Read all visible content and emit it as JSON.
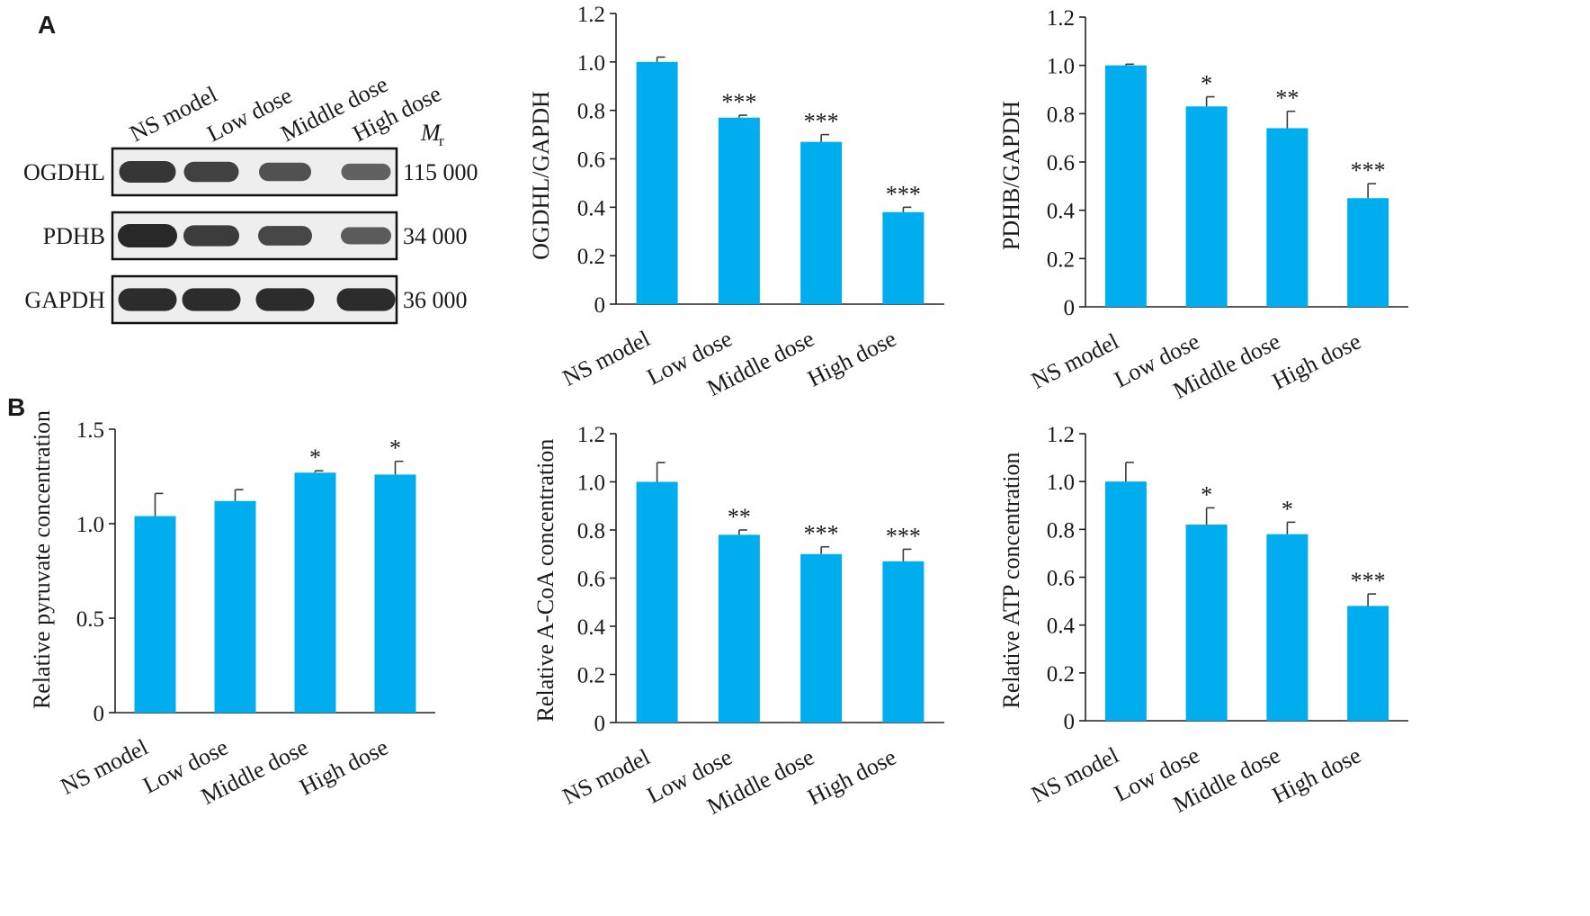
{
  "panels": {
    "a_label": "A",
    "b_label": "B"
  },
  "blot": {
    "lanes": [
      "NS model",
      "Low dose",
      "Middle dose",
      "High dose"
    ],
    "mr_label": "M",
    "mr_subscript": "r",
    "rows": [
      {
        "name": "OGDHL",
        "mw": "115 000",
        "intensity": [
          0.85,
          0.75,
          0.6,
          0.45
        ]
      },
      {
        "name": "PDHB",
        "mw": "34 000",
        "intensity": [
          1.0,
          0.8,
          0.7,
          0.5
        ]
      },
      {
        "name": "GAPDH",
        "mw": "36 000",
        "intensity": [
          0.95,
          0.95,
          0.95,
          0.95
        ]
      }
    ]
  },
  "style": {
    "bar_color": "#00aeef",
    "band_color": "#1c1c1c"
  },
  "chart_data": [
    {
      "id": "ogdhl",
      "type": "bar",
      "categories": [
        "NS model",
        "Low dose",
        "Middle dose",
        "High dose"
      ],
      "values": [
        1.0,
        0.77,
        0.67,
        0.38
      ],
      "errors": [
        0.02,
        0.01,
        0.03,
        0.02
      ],
      "significance": [
        "",
        "***",
        "***",
        "***"
      ],
      "ylabel": "OGDHL/GAPDH",
      "ylim": [
        0,
        1.2
      ],
      "yticks": [
        "0",
        "0.2",
        "0.4",
        "0.6",
        "0.8",
        "1.0",
        "1.2"
      ]
    },
    {
      "id": "pdhb",
      "type": "bar",
      "categories": [
        "NS model",
        "Low dose",
        "Middle dose",
        "High dose"
      ],
      "values": [
        1.0,
        0.83,
        0.74,
        0.45
      ],
      "errors": [
        0.005,
        0.04,
        0.07,
        0.06
      ],
      "significance": [
        "",
        "*",
        "**",
        "***"
      ],
      "ylabel": "PDHB/GAPDH",
      "ylim": [
        0,
        1.2
      ],
      "yticks": [
        "0",
        "0.2",
        "0.4",
        "0.6",
        "0.8",
        "1.0",
        "1.2"
      ]
    },
    {
      "id": "pyruvate",
      "type": "bar",
      "categories": [
        "NS model",
        "Low dose",
        "Middle dose",
        "High dose"
      ],
      "values": [
        1.04,
        1.12,
        1.27,
        1.26
      ],
      "errors": [
        0.12,
        0.06,
        0.01,
        0.07
      ],
      "significance": [
        "",
        "",
        "*",
        "*"
      ],
      "ylabel": "Relative pyruvate concentration",
      "ylim": [
        0,
        1.5
      ],
      "yticks": [
        "0",
        "0.5",
        "1.0",
        "1.5"
      ]
    },
    {
      "id": "acoa",
      "type": "bar",
      "categories": [
        "NS model",
        "Low dose",
        "Middle dose",
        "High dose"
      ],
      "values": [
        1.0,
        0.78,
        0.7,
        0.67
      ],
      "errors": [
        0.08,
        0.02,
        0.03,
        0.05
      ],
      "significance": [
        "",
        "**",
        "***",
        "***"
      ],
      "ylabel": "Relative A-CoA concentration",
      "ylim": [
        0,
        1.2
      ],
      "yticks": [
        "0",
        "0.2",
        "0.4",
        "0.6",
        "0.8",
        "1.0",
        "1.2"
      ]
    },
    {
      "id": "atp",
      "type": "bar",
      "categories": [
        "NS model",
        "Low dose",
        "Middle dose",
        "High dose"
      ],
      "values": [
        1.0,
        0.82,
        0.78,
        0.48
      ],
      "errors": [
        0.08,
        0.07,
        0.05,
        0.05
      ],
      "significance": [
        "",
        "*",
        "*",
        "***"
      ],
      "ylabel": "Relative ATP concentration",
      "ylim": [
        0,
        1.2
      ],
      "yticks": [
        "0",
        "0.2",
        "0.4",
        "0.6",
        "0.8",
        "1.0",
        "1.2"
      ]
    }
  ]
}
